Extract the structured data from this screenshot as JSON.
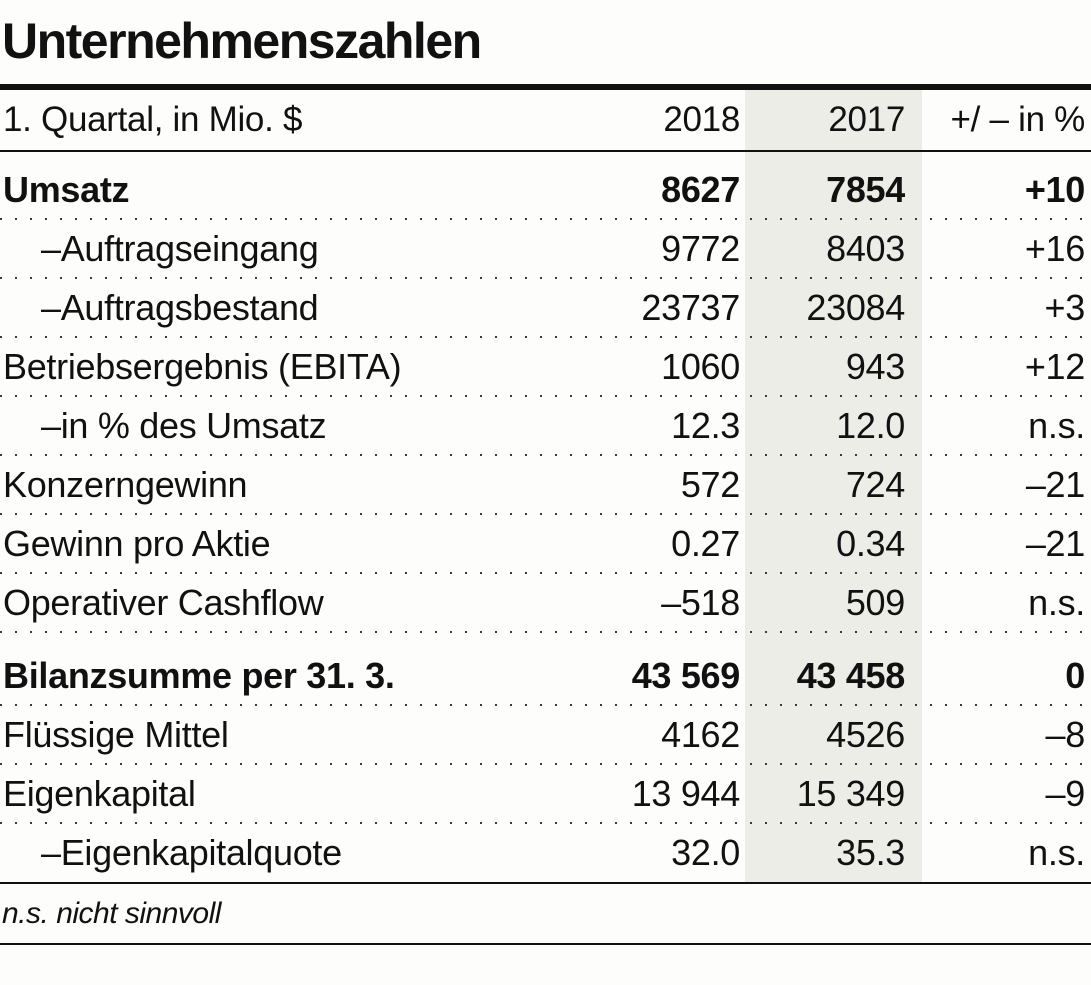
{
  "title": "Unternehmenszahlen",
  "table": {
    "header": {
      "label": "1. Quartal, in Mio. $",
      "y2018": "2018",
      "y2017": "2017",
      "change": "+/ – in %"
    },
    "rows": [
      {
        "label": "Umsatz",
        "v2018": "8627",
        "v2017": "7854",
        "change": "+10",
        "bold": true,
        "indent": false
      },
      {
        "label": "–Auftragseingang",
        "v2018": "9772",
        "v2017": "8403",
        "change": "+16",
        "bold": false,
        "indent": true
      },
      {
        "label": "–Auftragsbestand",
        "v2018": "23737",
        "v2017": "23084",
        "change": "+3",
        "bold": false,
        "indent": true
      },
      {
        "label": "Betriebsergebnis (EBITA)",
        "v2018": "1060",
        "v2017": "943",
        "change": "+12",
        "bold": false,
        "indent": false
      },
      {
        "label": "–in % des Umsatz",
        "v2018": "12.3",
        "v2017": "12.0",
        "change": "n.s.",
        "bold": false,
        "indent": true
      },
      {
        "label": "Konzerngewinn",
        "v2018": "572",
        "v2017": "724",
        "change": "–21",
        "bold": false,
        "indent": false
      },
      {
        "label": "Gewinn pro Aktie",
        "v2018": "0.27",
        "v2017": "0.34",
        "change": "–21",
        "bold": false,
        "indent": false
      },
      {
        "label": "Operativer Cashflow",
        "v2018": "–518",
        "v2017": "509",
        "change": "n.s.",
        "bold": false,
        "indent": false
      },
      {
        "label": "Bilanzsumme per 31. 3.",
        "v2018": "43 569",
        "v2017": "43 458",
        "change": "0",
        "bold": true,
        "indent": false,
        "section_start": true
      },
      {
        "label": "Flüssige Mittel",
        "v2018": "4162",
        "v2017": "4526",
        "change": "–8",
        "bold": false,
        "indent": false
      },
      {
        "label": "Eigenkapital",
        "v2018": "13 944",
        "v2017": "15 349",
        "change": "–9",
        "bold": false,
        "indent": false
      },
      {
        "label": "–Eigenkapitalquote",
        "v2018": "32.0",
        "v2017": "35.3",
        "change": "n.s.",
        "bold": false,
        "indent": true
      }
    ]
  },
  "footnote": "n.s. nicht sinnvoll",
  "colors": {
    "shaded_column": "#EDEDE8",
    "rule": "#111111",
    "text": "#111111",
    "dotted_separator": "#3a3a3a"
  },
  "chart_data": {
    "type": "table",
    "title": "Unternehmenszahlen",
    "subtitle": "1. Quartal, in Mio. $",
    "columns": [
      "1. Quartal, in Mio. $",
      "2018",
      "2017",
      "+/ – in %"
    ],
    "rows": [
      [
        "Umsatz",
        8627,
        7854,
        "+10"
      ],
      [
        "–Auftragseingang",
        9772,
        8403,
        "+16"
      ],
      [
        "–Auftragsbestand",
        23737,
        23084,
        "+3"
      ],
      [
        "Betriebsergebnis (EBITA)",
        1060,
        943,
        "+12"
      ],
      [
        "–in % des Umsatz",
        12.3,
        12.0,
        "n.s."
      ],
      [
        "Konzerngewinn",
        572,
        724,
        "–21"
      ],
      [
        "Gewinn pro Aktie",
        0.27,
        0.34,
        "–21"
      ],
      [
        "Operativer Cashflow",
        -518,
        509,
        "n.s."
      ],
      [
        "Bilanzsumme per 31. 3.",
        43569,
        43458,
        "0"
      ],
      [
        "Flüssige Mittel",
        4162,
        4526,
        "–8"
      ],
      [
        "Eigenkapital",
        13944,
        15349,
        "–9"
      ],
      [
        "–Eigenkapitalquote",
        32.0,
        35.3,
        "n.s."
      ]
    ],
    "footnote": "n.s. nicht sinnvoll",
    "layout": {
      "highlighted_column": "2017",
      "bold_rows": [
        "Umsatz",
        "Bilanzsumme per 31. 3."
      ]
    }
  }
}
